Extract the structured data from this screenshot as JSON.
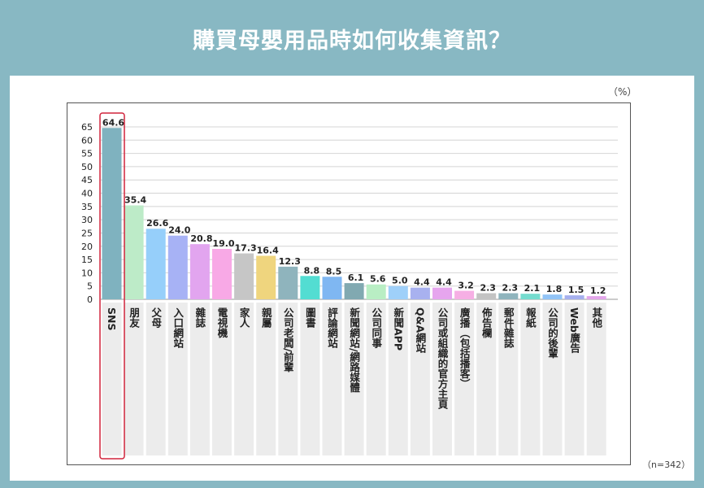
{
  "title": "購買母嬰用品時如何收集資訊？",
  "unit_label": "（%）",
  "note": "（n=342）",
  "colors": {
    "page_bg": "#88b8c3",
    "highlight_border": "#d0233b"
  },
  "chart_data": {
    "type": "bar",
    "title": "購買母嬰用品時如何收集資訊？",
    "xlabel": "",
    "ylabel": "",
    "ylim": [
      0,
      65
    ],
    "yticks": [
      0,
      5,
      10,
      15,
      20,
      25,
      30,
      35,
      40,
      45,
      50,
      55,
      60,
      65
    ],
    "grid": true,
    "highlight": "SNS",
    "categories": [
      "SNS",
      "朋友",
      "父母",
      "入口網站",
      "雜誌",
      "電視機",
      "家人",
      "親屬",
      "公司老闆/前輩",
      "圖書",
      "評論網站",
      "新聞網站/網路媒體",
      "公司同事",
      "新聞APP",
      "Q&A網站",
      "公司或組織的官方主頁",
      "廣播（包括播客）",
      "佈告欄",
      "郵件雜誌",
      "報紙",
      "公司的後輩",
      "Web廣告",
      "其他"
    ],
    "values": [
      64.6,
      35.4,
      26.6,
      24.0,
      20.8,
      19.0,
      17.3,
      16.4,
      12.3,
      8.8,
      8.5,
      6.1,
      5.6,
      5.0,
      4.4,
      4.4,
      3.2,
      2.3,
      2.3,
      2.1,
      1.8,
      1.5,
      1.2
    ],
    "value_labels": [
      "64.6",
      "35.4",
      "26.6",
      "24.0",
      "20.8",
      "19.0",
      "17.3",
      "16.4",
      "12.3",
      "8.8",
      "8.5",
      "6.1",
      "5.6",
      "5.0",
      "4.4",
      "4.4",
      "3.2",
      "2.3",
      "2.3",
      "2.1",
      "1.8",
      "1.5",
      "1.2"
    ],
    "bar_colors": [
      "#7fb2bf",
      "#bdebc8",
      "#96cffa",
      "#a7b2f5",
      "#e2a5ef",
      "#f8a9e6",
      "#c6c6c6",
      "#efd57e",
      "#8fb4bd",
      "#53ddd2",
      "#7fb7f2",
      "#81a9b1",
      "#b9eec4",
      "#9fd0f9",
      "#a8b1ef",
      "#e6a5ee",
      "#f6afe4",
      "#c3c3c3",
      "#8fb4bd",
      "#75dccf",
      "#92c4f7",
      "#a6b0ee",
      "#e3a6ea"
    ]
  }
}
